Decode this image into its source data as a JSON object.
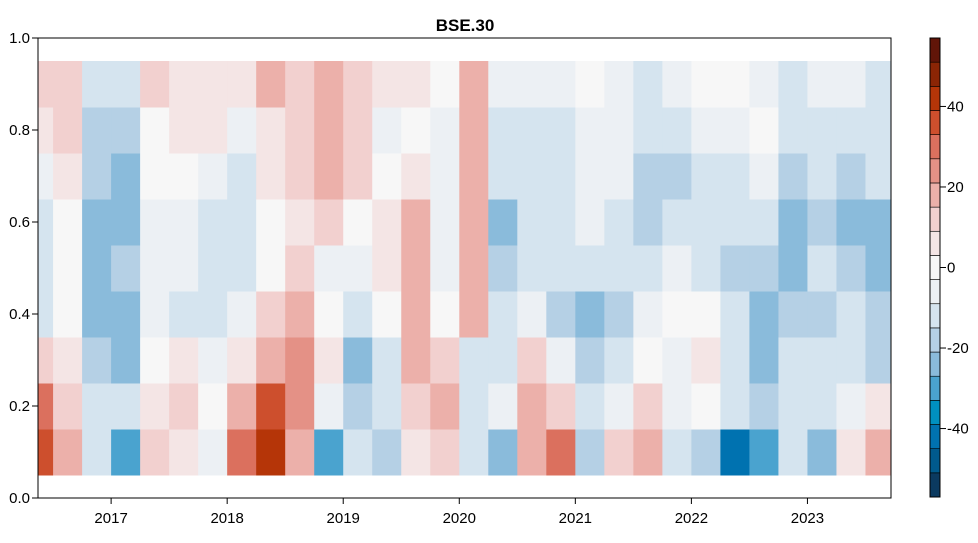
{
  "chart_data": {
    "type": "heatmap",
    "title": "BSE.30",
    "xlabel": "",
    "ylabel": "",
    "xlim": [
      2016.37,
      2023.72
    ],
    "ylim": [
      0.0,
      1.0
    ],
    "x_ticks": [
      "2017",
      "2018",
      "2019",
      "2020",
      "2021",
      "2022",
      "2023"
    ],
    "x_tick_values": [
      2017,
      2018,
      2019,
      2020,
      2021,
      2022,
      2023
    ],
    "y_ticks": [
      "0.0",
      "0.2",
      "0.4",
      "0.6",
      "0.8",
      "1.0"
    ],
    "y_tick_values": [
      0,
      0.2,
      0.4,
      0.6,
      0.8,
      1.0
    ],
    "x_start": 2016.375,
    "x_step": 0.25,
    "y_centers": [
      0.1,
      0.2,
      0.3,
      0.4,
      0.5,
      0.6,
      0.7,
      0.8,
      0.9
    ],
    "y_step": 0.1,
    "z": [
      [
        35,
        15,
        -10,
        -30,
        10,
        5,
        -5,
        30,
        40,
        20,
        -30,
        -10,
        -20,
        5,
        10,
        -15,
        -25,
        15,
        30,
        -20,
        10,
        15,
        -10,
        -20,
        -40,
        -30,
        -15,
        -25,
        5,
        15
      ],
      [
        30,
        10,
        -15,
        -15,
        5,
        10,
        0,
        15,
        35,
        25,
        -5,
        -20,
        -15,
        10,
        15,
        -10,
        -5,
        20,
        10,
        -10,
        -5,
        10,
        -5,
        0,
        -15,
        -20,
        -10,
        -15,
        -5,
        5
      ],
      [
        10,
        5,
        -20,
        -25,
        0,
        5,
        -5,
        5,
        15,
        25,
        5,
        -25,
        -10,
        15,
        10,
        -10,
        -15,
        10,
        -5,
        -20,
        -15,
        0,
        -5,
        5,
        -10,
        -25,
        -15,
        -15,
        -10,
        -20
      ],
      [
        -10,
        0,
        -25,
        -25,
        -5,
        -10,
        -15,
        -5,
        10,
        20,
        0,
        -15,
        0,
        15,
        0,
        15,
        -15,
        -5,
        -20,
        -25,
        -20,
        -5,
        0,
        0,
        -15,
        -25,
        -20,
        -20,
        -15,
        -20
      ],
      [
        -15,
        0,
        -25,
        -20,
        -5,
        -5,
        -15,
        -15,
        0,
        10,
        -5,
        -5,
        5,
        20,
        -5,
        15,
        -20,
        -10,
        -15,
        -10,
        -15,
        -10,
        -5,
        -10,
        -20,
        -20,
        -25,
        -15,
        -20,
        -25
      ],
      [
        -15,
        0,
        -25,
        -25,
        -5,
        -5,
        -10,
        -15,
        0,
        5,
        10,
        0,
        5,
        15,
        -5,
        20,
        -25,
        -15,
        -10,
        -5,
        -10,
        -20,
        -15,
        -10,
        -15,
        -15,
        -25,
        -20,
        -25,
        -25
      ],
      [
        -5,
        5,
        -20,
        -25,
        0,
        0,
        -5,
        -10,
        5,
        10,
        15,
        10,
        0,
        5,
        -5,
        20,
        -15,
        -15,
        -15,
        -5,
        -5,
        -20,
        -20,
        -10,
        -10,
        -5,
        -20,
        -15,
        -20,
        -15
      ],
      [
        5,
        10,
        -20,
        -20,
        0,
        5,
        5,
        -5,
        5,
        10,
        15,
        10,
        -5,
        0,
        -5,
        15,
        -10,
        -10,
        -15,
        -5,
        -5,
        -15,
        -15,
        -5,
        -5,
        0,
        -15,
        -10,
        -10,
        -10
      ],
      [
        10,
        10,
        -10,
        -10,
        10,
        5,
        5,
        5,
        15,
        10,
        15,
        10,
        5,
        5,
        0,
        15,
        -5,
        -5,
        -5,
        0,
        -5,
        -10,
        -5,
        0,
        0,
        -5,
        -10,
        -5,
        -5,
        -10
      ]
    ],
    "colorbar": {
      "range": [
        -57,
        57
      ],
      "bin_width": 6,
      "ticks": [
        "-40",
        "-20",
        "0",
        "20",
        "40"
      ],
      "tick_values": [
        -40,
        -20,
        0,
        20,
        40
      ],
      "colors": [
        "#0b3a60",
        "#005a8d",
        "#0072b0",
        "#0090c0",
        "#4aa3cf",
        "#8abbdb",
        "#b5d0e5",
        "#d5e4ef",
        "#ecf0f4",
        "#f7f7f7",
        "#f4e5e5",
        "#f2d0cf",
        "#ecb0aa",
        "#e49186",
        "#db705e",
        "#cd4f2d",
        "#b53508",
        "#8b2505",
        "#611508"
      ]
    },
    "grid": false,
    "legend": "right"
  }
}
